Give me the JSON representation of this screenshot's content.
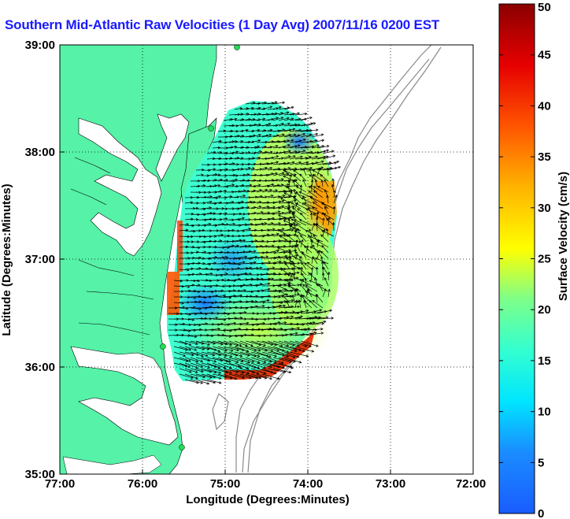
{
  "title": "Southern Mid-Atlantic Raw Velocities (1 Day Avg) 2007/11/16 0200 EST",
  "map": {
    "x_label": "Longitude (Degrees:Minutes)",
    "y_label": "Latitude (Degrees:Minutes)",
    "x_ticks": [
      "77:00",
      "76:00",
      "75:00",
      "74:00",
      "73:00",
      "72:00"
    ],
    "y_ticks": [
      "39:00",
      "38:00",
      "37:00",
      "36:00",
      "35:00"
    ],
    "lon_range": [
      -77,
      -72
    ],
    "lat_range": [
      35,
      39
    ],
    "land_color": "#55f2a8",
    "bathymetry_color": "#8a8a8a",
    "grid": "dotted"
  },
  "colorbar": {
    "label": "Surface Velocity (cm/s)",
    "ticks": [
      "0",
      "5",
      "10",
      "15",
      "20",
      "25",
      "30",
      "35",
      "40",
      "45",
      "50"
    ],
    "range": [
      0,
      50
    ],
    "colormap": "jet"
  },
  "stations": [
    "radar-station",
    "radar-station",
    "radar-station",
    "radar-station"
  ]
}
